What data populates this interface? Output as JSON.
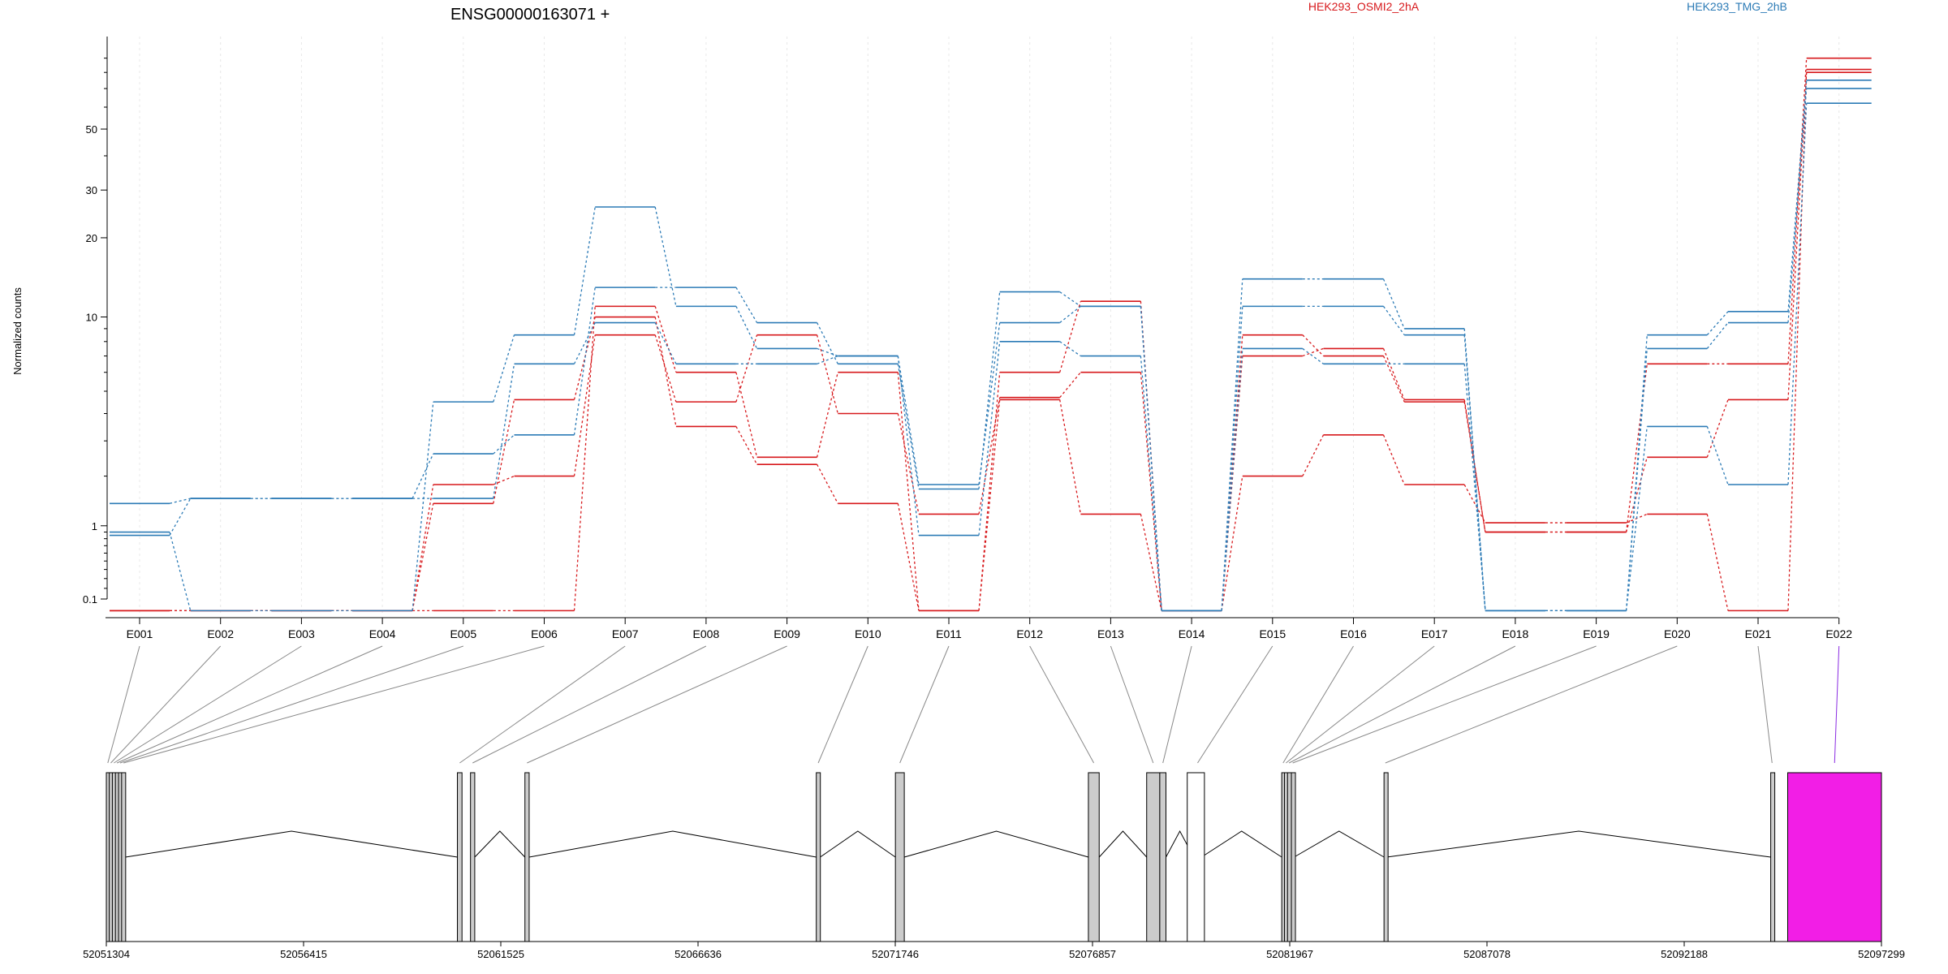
{
  "title": "ENSG00000163071 +",
  "legend": [
    {
      "label": "HEK293_OSMI2_2hA",
      "color": "#d7191c"
    },
    {
      "label": "HEK293_TMG_2hB",
      "color": "#2c7bb6"
    }
  ],
  "colors": {
    "red": "#d7191c",
    "blue": "#2c7bb6",
    "highlight": "#f21ee6",
    "exon_fill": "#cccccc"
  },
  "chart_data": {
    "type": "line",
    "ylabel": "Normalized counts",
    "yscale": "log1p",
    "yticks": [
      {
        "value": 0.1,
        "label": "0.1"
      },
      {
        "value": 1,
        "label": "1"
      },
      {
        "value": 10,
        "label": "10"
      },
      {
        "value": 20,
        "label": "20"
      },
      {
        "value": 30,
        "label": "30"
      },
      {
        "value": 50,
        "label": "50"
      }
    ],
    "categories": [
      "E001",
      "E002",
      "E003",
      "E004",
      "E005",
      "E006",
      "E007",
      "E008",
      "E009",
      "E010",
      "E011",
      "E012",
      "E013",
      "E014",
      "E015",
      "E016",
      "E017",
      "E018",
      "E019",
      "E020",
      "E021",
      "E022"
    ],
    "series": [
      {
        "color": "red",
        "values": [
          0,
          0,
          0,
          0,
          0,
          0,
          11,
          6,
          2.5,
          6,
          0,
          4.6,
          1.2,
          0,
          2,
          3.2,
          1.8,
          1.05,
          1.05,
          1.2,
          0,
          82
        ]
      },
      {
        "color": "red",
        "values": [
          0,
          0,
          0,
          0,
          1.8,
          2,
          8.5,
          4.5,
          8.5,
          4,
          1.2,
          4.7,
          6,
          0,
          7,
          7.5,
          4.6,
          0.9,
          0.9,
          2.5,
          4.6,
          80
        ]
      },
      {
        "color": "red",
        "values": [
          0,
          0,
          0,
          0,
          1.4,
          4.6,
          10,
          3.5,
          2.3,
          1.4,
          0,
          6,
          11.5,
          0,
          8.5,
          7,
          4.5,
          0.9,
          0.9,
          6.5,
          6.5,
          90
        ]
      },
      {
        "color": "blue",
        "values": [
          0.85,
          1.5,
          1.5,
          1.5,
          2.6,
          3.2,
          13,
          13,
          9.5,
          6.5,
          1.7,
          12.5,
          11,
          0,
          14,
          14,
          9,
          0,
          0,
          7.5,
          9.5,
          70
        ]
      },
      {
        "color": "blue",
        "values": [
          0.9,
          0,
          0,
          0,
          4.5,
          8.5,
          26,
          11,
          7.5,
          7,
          0.85,
          8,
          7,
          0,
          11,
          11,
          8.5,
          0,
          0,
          8.5,
          10.5,
          75
        ]
      },
      {
        "color": "blue",
        "values": [
          1.4,
          1.5,
          1.5,
          1.5,
          1.5,
          6.5,
          9.5,
          6.5,
          6.5,
          7,
          1.8,
          9.5,
          11,
          0,
          7.5,
          6.5,
          6.5,
          0,
          0,
          3.5,
          1.8,
          62
        ]
      }
    ]
  },
  "gene_model": {
    "start": 52051304,
    "end": 52097299,
    "axis_ticks": [
      "52051304",
      "52056415",
      "52061525",
      "52066636",
      "52071746",
      "52076857",
      "52081967",
      "52087078",
      "52092188",
      "52097299"
    ],
    "exons": [
      {
        "id": "E001",
        "start": 52051304,
        "end": 52051380
      },
      {
        "id": "E002",
        "start": 52051380,
        "end": 52051460
      },
      {
        "id": "E003",
        "start": 52051460,
        "end": 52051540
      },
      {
        "id": "E004",
        "start": 52051540,
        "end": 52051620
      },
      {
        "id": "E005",
        "start": 52051620,
        "end": 52051700
      },
      {
        "id": "E006",
        "start": 52051700,
        "end": 52051800
      },
      {
        "id": "E007",
        "start": 52060400,
        "end": 52060520
      },
      {
        "id": "E008",
        "start": 52060740,
        "end": 52060850
      },
      {
        "id": "E009",
        "start": 52062150,
        "end": 52062260
      },
      {
        "id": "E010",
        "start": 52069700,
        "end": 52069800
      },
      {
        "id": "E011",
        "start": 52071750,
        "end": 52071980
      },
      {
        "id": "E012",
        "start": 52076750,
        "end": 52077030
      },
      {
        "id": "E013",
        "start": 52078260,
        "end": 52078600
      },
      {
        "id": "E014",
        "start": 52078600,
        "end": 52078760
      },
      {
        "id": "E015",
        "start": 52079480,
        "end": 52079680
      },
      {
        "id": "E016",
        "start": 52081760,
        "end": 52081830
      },
      {
        "id": "E017",
        "start": 52081830,
        "end": 52081910
      },
      {
        "id": "E018",
        "start": 52081910,
        "end": 52081990
      },
      {
        "id": "E019",
        "start": 52082010,
        "end": 52082080
      },
      {
        "id": "E020",
        "start": 52084410,
        "end": 52084480
      },
      {
        "id": "E021",
        "start": 52094430,
        "end": 52094500
      },
      {
        "id": "E022",
        "start": 52094870,
        "end": 52097299
      }
    ],
    "open_exon": {
      "start": 52078260,
      "end": 52078600
    },
    "highlight_exon": "E022"
  }
}
